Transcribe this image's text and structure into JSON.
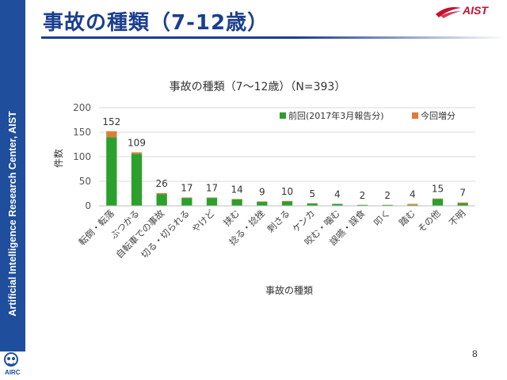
{
  "sidebar": {
    "org_text": "Artificial Intelligence Research Center, AIST",
    "logo_text": "AIRC"
  },
  "header": {
    "title": "事故の種類（7-12歳）",
    "logo_text": "AIST"
  },
  "page_number": "8",
  "colors": {
    "previous": "#2ca02c",
    "current": "#e07b39",
    "brand": "#1b3f8f",
    "aist": "#c8102e"
  },
  "chart_data": {
    "type": "bar",
    "stacked": true,
    "title": "事故の種類（7〜12歳）（N=393）",
    "xlabel": "事故の種類",
    "ylabel": "件数",
    "ylim": [
      0,
      200
    ],
    "yticks": [
      0,
      50,
      100,
      150,
      200
    ],
    "legend_position": "top-right",
    "categories": [
      "転倒・転落",
      "ぶつかる",
      "自転車での事故",
      "切る・切られる",
      "やけど",
      "挟む",
      "捻る・捻挫",
      "刺さる",
      "ケンカ",
      "咬む・噛む",
      "誤嚥・誤食",
      "叩く",
      "踏む",
      "その他",
      "不明"
    ],
    "totals": [
      152,
      109,
      26,
      17,
      17,
      14,
      9,
      10,
      5,
      4,
      2,
      2,
      4,
      15,
      7
    ],
    "series": [
      {
        "name": "前回(2017年3月報告分)",
        "values": [
          140,
          106,
          24,
          16,
          16,
          13,
          8,
          9,
          5,
          4,
          2,
          2,
          2,
          14,
          5
        ]
      },
      {
        "name": "今回増分",
        "values": [
          12,
          3,
          2,
          1,
          1,
          1,
          1,
          1,
          0,
          0,
          0,
          0,
          2,
          1,
          2
        ]
      }
    ]
  }
}
